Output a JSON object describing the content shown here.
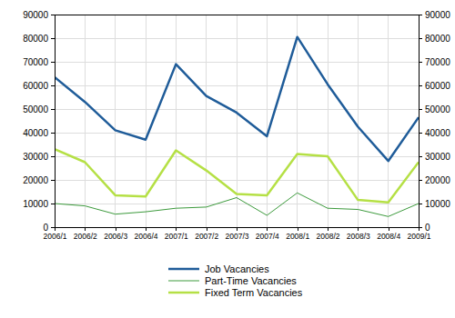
{
  "chart_data": {
    "type": "line",
    "categories": [
      "2006/1",
      "2006/2",
      "2006/3",
      "2006/4",
      "2007/1",
      "2007/2",
      "2007/3",
      "2007/4",
      "2008/1",
      "2008/2",
      "2008/3",
      "2008/4",
      "2009/1"
    ],
    "series": [
      {
        "name": "Job Vacancies",
        "color": "#1f5c99",
        "values": [
          63500,
          53000,
          41000,
          37000,
          69000,
          55500,
          48500,
          38500,
          80500,
          60500,
          42500,
          28000,
          46500
        ]
      },
      {
        "name": "Part-Time Vacancies",
        "color": "#3c9a3c",
        "values": [
          10000,
          9000,
          5500,
          6500,
          8000,
          8500,
          12500,
          5000,
          14500,
          8000,
          7500,
          4500,
          10000
        ]
      },
      {
        "name": "Fixed Term Vacancies",
        "color": "#b5e045",
        "values": [
          33000,
          27500,
          13500,
          13000,
          32500,
          24000,
          14000,
          13500,
          31000,
          30000,
          11500,
          10500,
          27500
        ]
      }
    ],
    "ylim": [
      0,
      90000
    ],
    "yticks": [
      0,
      10000,
      20000,
      30000,
      40000,
      50000,
      60000,
      70000,
      80000,
      90000
    ],
    "y2lim": [
      0,
      90000
    ],
    "y2ticks": [
      0,
      10000,
      20000,
      30000,
      40000,
      50000,
      60000,
      70000,
      80000,
      90000
    ],
    "grid": true,
    "legend": "bottom"
  }
}
